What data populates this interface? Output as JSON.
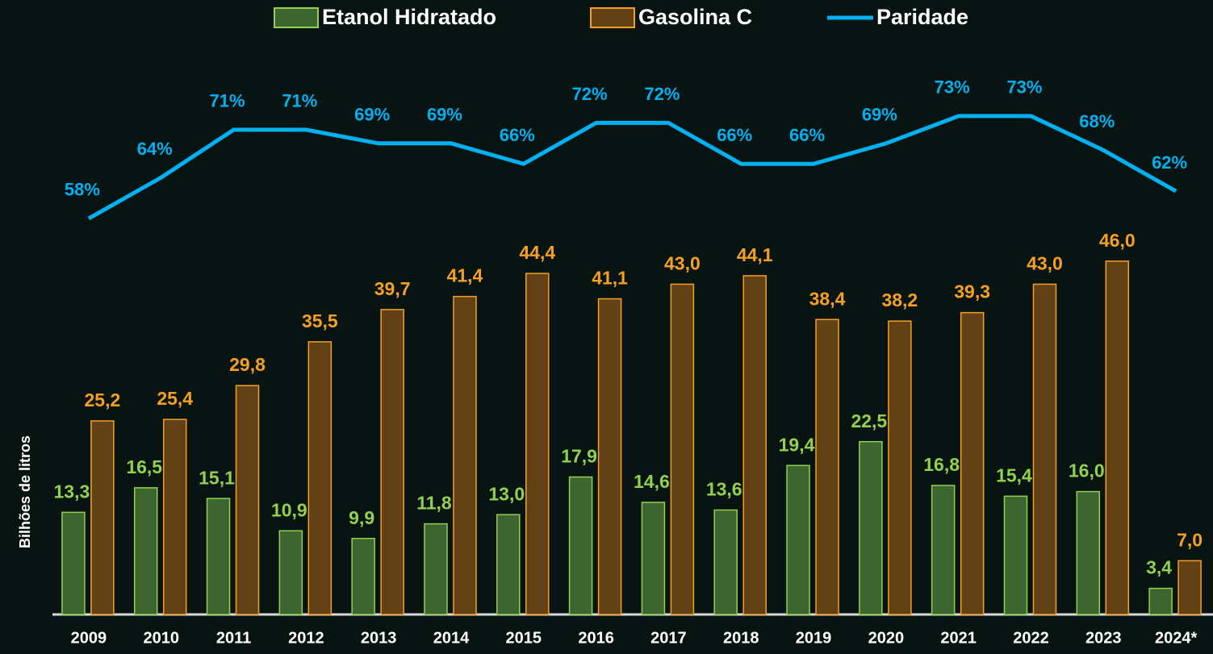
{
  "chart_data": {
    "type": "bar",
    "y_axis_label": "Bilhões de litros",
    "categories": [
      "2009",
      "2010",
      "2011",
      "2012",
      "2013",
      "2014",
      "2015",
      "2016",
      "2017",
      "2018",
      "2019",
      "2020",
      "2021",
      "2022",
      "2023",
      "2024*"
    ],
    "series": [
      {
        "name": "Etanol Hidratado",
        "type": "bar",
        "color": "#3d6530",
        "border_color": "#92d050",
        "values": [
          13.3,
          16.5,
          15.1,
          10.9,
          9.9,
          11.8,
          13.0,
          17.9,
          14.6,
          13.6,
          19.4,
          22.5,
          16.8,
          15.4,
          16.0,
          3.4
        ],
        "value_labels": [
          "13,3",
          "16,5",
          "15,1",
          "10,9",
          "9,9",
          "11,8",
          "13,0",
          "17,9",
          "14,6",
          "13,6",
          "19,4",
          "22,5",
          "16,8",
          "15,4",
          "16,0",
          "3,4"
        ]
      },
      {
        "name": "Gasolina C",
        "type": "bar",
        "color": "#624116",
        "border_color": "#f5a023",
        "values": [
          25.2,
          25.4,
          29.8,
          35.5,
          39.7,
          41.4,
          44.4,
          41.1,
          43.0,
          44.1,
          38.4,
          38.2,
          39.3,
          43.0,
          46.0,
          7.0
        ],
        "value_labels": [
          "25,2",
          "25,4",
          "29,8",
          "35,5",
          "39,7",
          "41,4",
          "44,4",
          "41,1",
          "43,0",
          "44,1",
          "38,4",
          "38,2",
          "39,3",
          "43,0",
          "46,0",
          "7,0"
        ]
      },
      {
        "name": "Paridade",
        "type": "line",
        "axis": "y2",
        "color": "#00b0f0",
        "values": [
          58,
          64,
          71,
          71,
          69,
          69,
          66,
          72,
          72,
          66,
          66,
          69,
          73,
          73,
          68,
          62
        ],
        "value_labels": [
          "58%",
          "64%",
          "71%",
          "71%",
          "69%",
          "69%",
          "66%",
          "72%",
          "72%",
          "66%",
          "66%",
          "69%",
          "73%",
          "73%",
          "68%",
          "62%"
        ]
      }
    ],
    "ylim": [
      0,
      80
    ],
    "y2lim": [
      0,
      90
    ],
    "legend": "top"
  }
}
